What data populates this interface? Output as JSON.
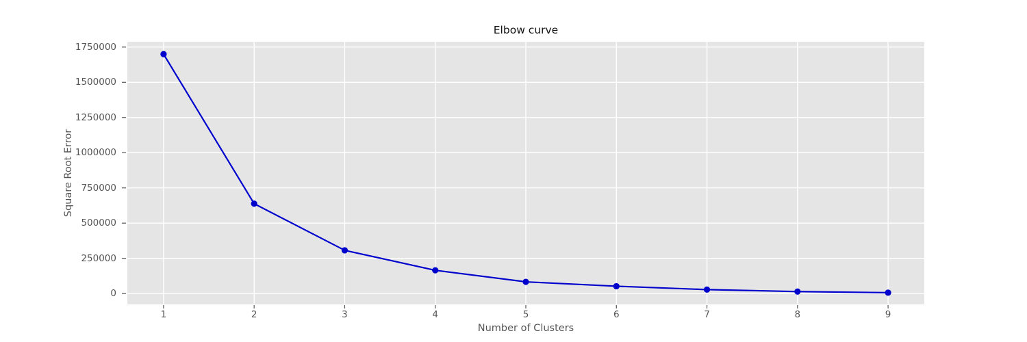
{
  "figure": {
    "background": "#ffffff",
    "axes_background": "#e5e5e5",
    "grid_color": "#ffffff",
    "tick_mark_color": "#555555",
    "tick_label_color": "#555555",
    "axis_label_color": "#555555",
    "title_color": "#141414",
    "line_color": "#0000cd",
    "marker_color": "#0000cd"
  },
  "chart_data": {
    "type": "line",
    "title": "Elbow curve",
    "xlabel": "Number of Clusters",
    "ylabel": "Square Root Error",
    "x": [
      1,
      2,
      3,
      4,
      5,
      6,
      7,
      8,
      9
    ],
    "y": [
      1700000,
      638000,
      307000,
      165000,
      83000,
      52000,
      28000,
      14000,
      6000
    ],
    "series": [
      {
        "name": "square-root-error",
        "marker": "circle",
        "color": "#0000cd"
      }
    ],
    "xticks": [
      1,
      2,
      3,
      4,
      5,
      6,
      7,
      8,
      9
    ],
    "xticklabels": [
      "1",
      "2",
      "3",
      "4",
      "5",
      "6",
      "7",
      "8",
      "9"
    ],
    "yticks": [
      0,
      250000,
      500000,
      750000,
      1000000,
      1250000,
      1500000,
      1750000
    ],
    "yticklabels": [
      "0",
      "250000",
      "500000",
      "750000",
      "1000000",
      "1250000",
      "1500000",
      "1750000"
    ],
    "xlim": [
      0.6,
      9.4
    ],
    "ylim": [
      -77000,
      1788000
    ],
    "grid": true,
    "legend": null
  }
}
